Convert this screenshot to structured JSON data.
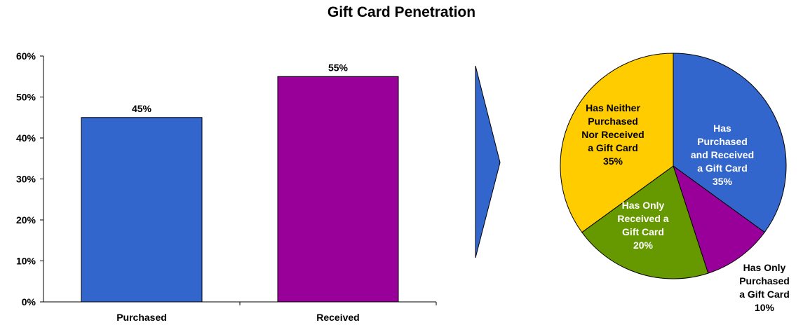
{
  "title": "Gift Card Penetration",
  "colors": {
    "purchased": "#3366CC",
    "received": "#990099",
    "arrow": "#3366CC",
    "slice_both": "#3366CC",
    "slice_only_purchased": "#990099",
    "slice_only_received": "#669900",
    "slice_neither": "#FFCC00"
  },
  "chart_data": [
    {
      "type": "bar",
      "categories": [
        "Purchased",
        "Received"
      ],
      "values": [
        45,
        55
      ],
      "data_labels": [
        "45%",
        "55%"
      ],
      "ylim": [
        0,
        60
      ],
      "yticks": [
        0,
        10,
        20,
        30,
        40,
        50,
        60
      ],
      "ytick_labels": [
        "0%",
        "10%",
        "20%",
        "30%",
        "40%",
        "50%",
        "60%"
      ],
      "grid": false,
      "legend": "none"
    },
    {
      "type": "pie",
      "slices": [
        {
          "label_lines": [
            "Has",
            "Purchased",
            "and Received",
            "a Gift Card",
            "35%"
          ],
          "value": 35,
          "color_key": "slice_both"
        },
        {
          "label_lines": [
            "Has Only",
            "Purchased",
            "a Gift Card",
            "10%"
          ],
          "value": 10,
          "color_key": "slice_only_purchased"
        },
        {
          "label_lines": [
            "Has Only",
            "Received a",
            "Gift Card",
            "20%"
          ],
          "value": 20,
          "color_key": "slice_only_received"
        },
        {
          "label_lines": [
            "Has Neither",
            "Purchased",
            "Nor Received",
            "a Gift Card",
            "35%"
          ],
          "value": 35,
          "color_key": "slice_neither"
        }
      ],
      "start_angle_deg": 0,
      "direction": "clockwise",
      "legend": "none"
    }
  ]
}
